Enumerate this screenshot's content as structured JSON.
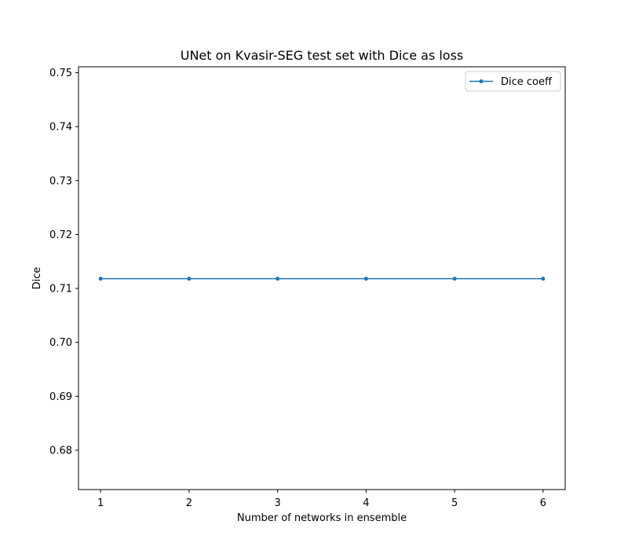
{
  "chart_data": {
    "type": "line",
    "title": "UNet on Kvasir-SEG test set with Dice as loss",
    "xlabel": "Number of networks in ensemble",
    "ylabel": "Dice",
    "x": [
      1,
      2,
      3,
      4,
      5,
      6
    ],
    "series": [
      {
        "name": "Dice coeff",
        "values": [
          0.7118,
          0.7118,
          0.7118,
          0.7118,
          0.7118,
          0.7118
        ],
        "color": "#1f77b4",
        "marker": "point"
      }
    ],
    "xlim": [
      0.75,
      6.25
    ],
    "ylim": [
      0.6727,
      0.7511
    ],
    "xticks": [
      1,
      2,
      3,
      4,
      5,
      6
    ],
    "yticks": [
      0.68,
      0.69,
      0.7,
      0.71,
      0.72,
      0.73,
      0.74,
      0.75
    ],
    "ytick_labels": [
      "0.68",
      "0.69",
      "0.70",
      "0.71",
      "0.72",
      "0.73",
      "0.74",
      "0.75"
    ],
    "grid": false,
    "legend_position": "top-right"
  }
}
